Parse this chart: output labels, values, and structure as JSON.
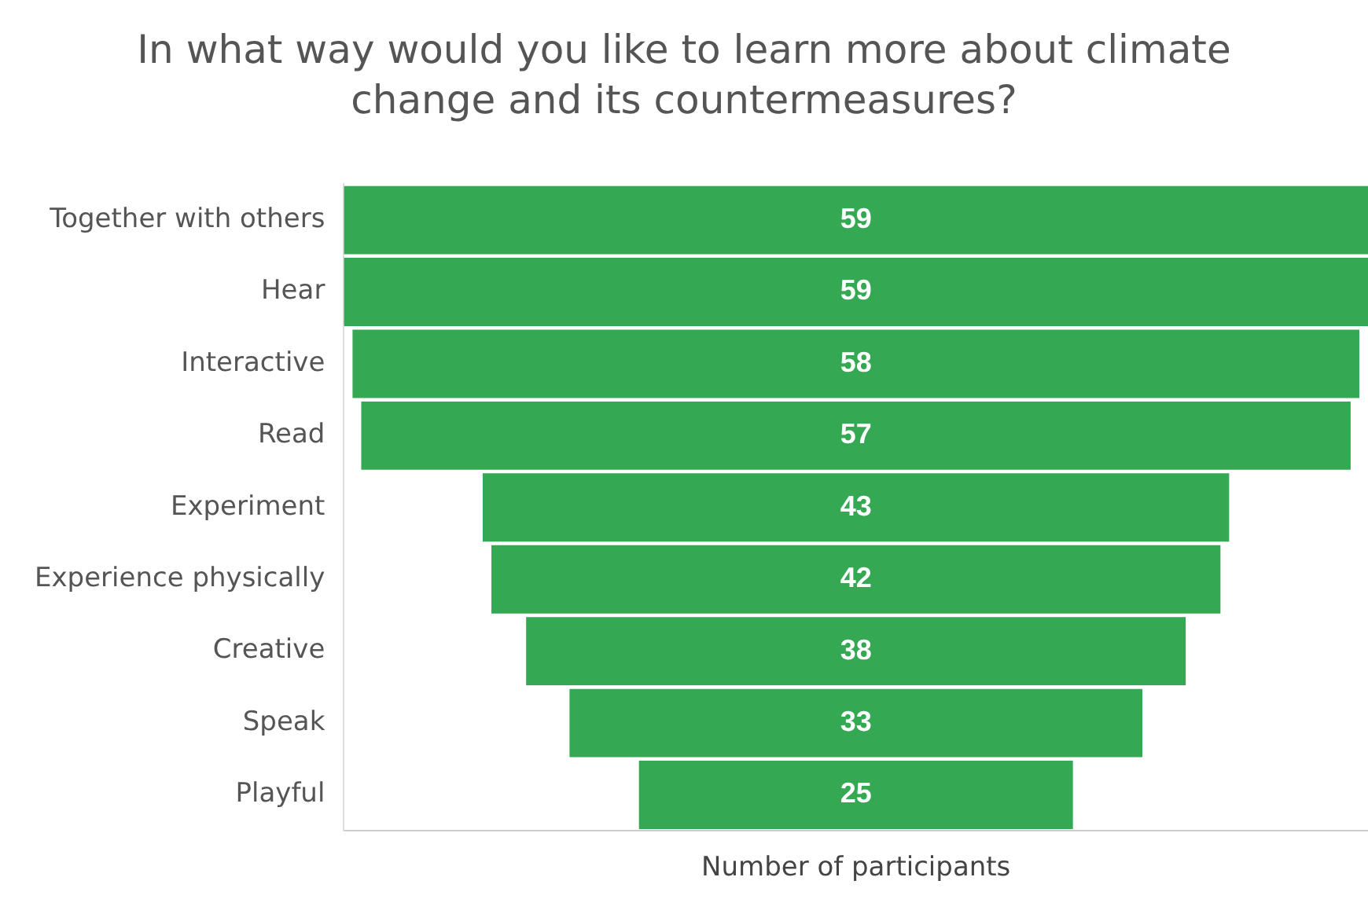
{
  "chart_data": {
    "type": "other",
    "title": "In what way would you like to learn more about climate change and its countermeasures?",
    "xlabel": "Number of participants",
    "categories": [
      "Together with others",
      "Hear",
      "Interactive",
      "Read",
      "Experiment",
      "Experience physically",
      "Creative",
      "Speak",
      "Playful"
    ],
    "values": [
      59,
      59,
      58,
      57,
      43,
      42,
      38,
      33,
      25
    ],
    "color": "#34a853",
    "data_labels": true,
    "legend": false
  }
}
